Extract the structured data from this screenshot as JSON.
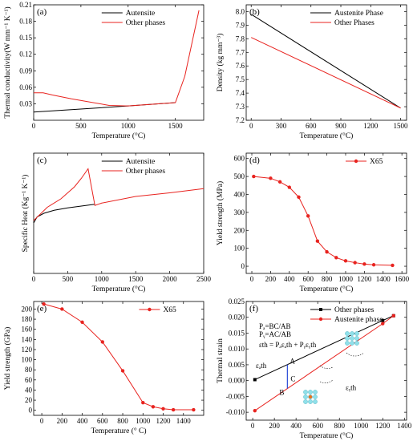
{
  "chart_data": [
    {
      "id": "a",
      "type": "line",
      "panel_label": "(a)",
      "xlabel": "Temperature (°C)",
      "ylabel": "Thermal conductivity(W mm⁻¹ K⁻¹)",
      "xlim": [
        0,
        1800
      ],
      "ylim": [
        0,
        0.21
      ],
      "xticks": [
        0,
        500,
        1000,
        1500
      ],
      "yticks": [
        0.03,
        0.06,
        0.09,
        0.12,
        0.15,
        0.18,
        0.21
      ],
      "ytick_labels": [
        "0.03",
        "0.06",
        "0.09",
        "0.12",
        "0.15",
        "0.18",
        "0.21"
      ],
      "legend_position": "top-right",
      "series": [
        {
          "name": "Autensite",
          "color": "#000000",
          "x": [
            0,
            1000,
            1500
          ],
          "y": [
            0.015,
            0.026,
            0.032
          ]
        },
        {
          "name": "Other phases",
          "color": "#e8231f",
          "x": [
            0,
            100,
            200,
            400,
            800,
            1000,
            1500,
            1600,
            1750
          ],
          "y": [
            0.05,
            0.05,
            0.046,
            0.039,
            0.027,
            0.026,
            0.032,
            0.08,
            0.2
          ]
        }
      ]
    },
    {
      "id": "b",
      "type": "line",
      "panel_label": "(b)",
      "xlabel": "Temperature (°C)",
      "ylabel": "Density (kg mm⁻³)",
      "xlim": [
        -50,
        1560
      ],
      "ylim": [
        7.2,
        8.05
      ],
      "xticks": [
        0,
        300,
        600,
        900,
        1200,
        1500
      ],
      "yticks": [
        7.2,
        7.3,
        7.4,
        7.5,
        7.6,
        7.7,
        7.8,
        7.9,
        8.0
      ],
      "ytick_labels": [
        "7.2",
        "7.3",
        "7.4",
        "7.5",
        "7.6",
        "7.7",
        "7.8",
        "7.9",
        "8.0"
      ],
      "legend_position": "top-right",
      "series": [
        {
          "name": "Austenite Phase",
          "color": "#000000",
          "x": [
            0,
            1500
          ],
          "y": [
            7.98,
            7.29
          ]
        },
        {
          "name": "Other Phases",
          "color": "#e8231f",
          "x": [
            0,
            1500
          ],
          "y": [
            7.81,
            7.29
          ]
        }
      ]
    },
    {
      "id": "c",
      "type": "line",
      "panel_label": "(c)",
      "xlabel": "Temperature (°C)",
      "ylabel": "Specific Heat (Kg⁻¹ K⁻¹)",
      "xlim": [
        0,
        2500
      ],
      "ylim": [
        0,
        1000
      ],
      "xticks": [
        0,
        500,
        1000,
        1500,
        2000,
        2500
      ],
      "yticks": [],
      "ytick_labels": [],
      "legend_position": "top-right",
      "series": [
        {
          "name": "Autensite",
          "color": "#000000",
          "x": [
            0,
            50,
            150,
            300,
            500,
            700,
            900
          ],
          "y": [
            420,
            470,
            500,
            525,
            545,
            560,
            575
          ]
        },
        {
          "name": "Other phases",
          "color": "#e8231f",
          "x": [
            0,
            200,
            400,
            600,
            700,
            800,
            900,
            1000,
            1500,
            2000,
            2500
          ],
          "y": [
            440,
            550,
            620,
            720,
            790,
            870,
            565,
            585,
            640,
            670,
            705
          ]
        }
      ]
    },
    {
      "id": "d",
      "type": "line",
      "panel_label": "(d)",
      "xlabel": "Temperature (°C)",
      "ylabel": "Yield strength (MPa)",
      "xlim": [
        -60,
        1650
      ],
      "ylim": [
        -40,
        630
      ],
      "xticks": [
        0,
        200,
        400,
        600,
        800,
        1000,
        1200,
        1400,
        1600
      ],
      "yticks": [
        0,
        100,
        200,
        300,
        400,
        500,
        600
      ],
      "ytick_labels": [
        "0",
        "100",
        "200",
        "300",
        "400",
        "500",
        "600"
      ],
      "legend_position": "top-right",
      "series": [
        {
          "name": "X65",
          "color": "#e8231f",
          "x": [
            20,
            200,
            300,
            400,
            500,
            600,
            700,
            800,
            900,
            1000,
            1100,
            1200,
            1300,
            1500
          ],
          "y": [
            500,
            490,
            470,
            440,
            385,
            280,
            140,
            80,
            48,
            30,
            20,
            12,
            8,
            5
          ]
        }
      ]
    },
    {
      "id": "e",
      "type": "line",
      "panel_label": "(e)",
      "xlabel": "Temperature (° C)",
      "ylabel": "Yield strength (GPa)",
      "xlim": [
        -80,
        1600
      ],
      "ylim": [
        -10,
        215
      ],
      "xticks": [
        0,
        200,
        400,
        600,
        800,
        1000,
        1200,
        1400
      ],
      "yticks": [
        0,
        20,
        40,
        60,
        80,
        100,
        120,
        140,
        160,
        180,
        200
      ],
      "ytick_labels": [
        "0",
        "20",
        "40",
        "60",
        "80",
        "100",
        "120",
        "140",
        "160",
        "180",
        "200"
      ],
      "legend_position": "top-right",
      "series": [
        {
          "name": "X65",
          "color": "#e8231f",
          "x": [
            20,
            200,
            400,
            600,
            800,
            1000,
            1100,
            1200,
            1300,
            1500
          ],
          "y": [
            210,
            200,
            174,
            135,
            78,
            15,
            7,
            3,
            1,
            1
          ]
        }
      ]
    },
    {
      "id": "f",
      "type": "line",
      "panel_label": "(f)",
      "xlabel": "Temperature (°C)",
      "ylabel": "Thermal strain",
      "xlim": [
        -60,
        1420
      ],
      "ylim": [
        -0.0125,
        0.025
      ],
      "xticks": [
        0,
        200,
        400,
        600,
        800,
        1000,
        1200,
        1400
      ],
      "yticks": [
        -0.01,
        -0.005,
        0.0,
        0.005,
        0.01,
        0.015,
        0.02,
        0.025
      ],
      "ytick_labels": [
        "-0.010",
        "-0.005",
        "0.000",
        "0.005",
        "0.010",
        "0.015",
        "0.020",
        "0.025"
      ],
      "legend_position": "top-right",
      "series": [
        {
          "name": "Other phases",
          "color": "#000000",
          "marker": "square",
          "x": [
            20,
            1200,
            1300
          ],
          "y": [
            0.0003,
            0.019,
            0.0205
          ]
        },
        {
          "name": "Austenite phase",
          "color": "#e8231f",
          "marker": "circle",
          "x": [
            20,
            1200,
            1300
          ],
          "y": [
            -0.0095,
            0.018,
            0.0205
          ]
        }
      ],
      "annotations": {
        "eq1": "Pₐ=BC/AB",
        "eq2": "Pᵧ=AC/AB",
        "eq3": "εth = Pₐεₐth + Pᵧεᵧth",
        "pt_a": "A",
        "pt_b": "B",
        "pt_c": "C",
        "eps_alpha": "εₐth",
        "eps_gamma": "εᵧth"
      }
    }
  ]
}
